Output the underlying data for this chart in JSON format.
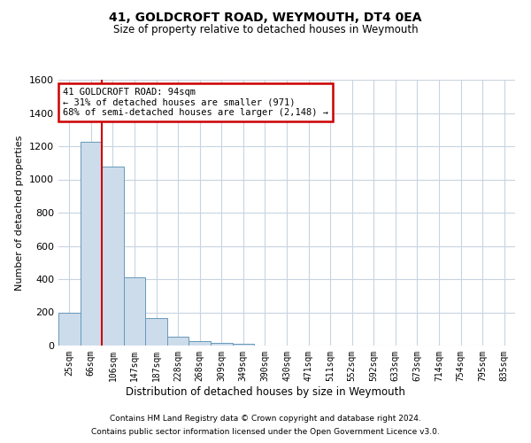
{
  "title1": "41, GOLDCROFT ROAD, WEYMOUTH, DT4 0EA",
  "title2": "Size of property relative to detached houses in Weymouth",
  "xlabel": "Distribution of detached houses by size in Weymouth",
  "ylabel": "Number of detached properties",
  "categories": [
    "25sqm",
    "66sqm",
    "106sqm",
    "147sqm",
    "187sqm",
    "228sqm",
    "268sqm",
    "309sqm",
    "349sqm",
    "390sqm",
    "430sqm",
    "471sqm",
    "511sqm",
    "552sqm",
    "592sqm",
    "633sqm",
    "673sqm",
    "714sqm",
    "754sqm",
    "795sqm",
    "835sqm"
  ],
  "values": [
    200,
    1225,
    1075,
    410,
    165,
    55,
    25,
    15,
    10,
    0,
    0,
    0,
    0,
    0,
    0,
    0,
    0,
    0,
    0,
    0,
    0
  ],
  "bar_color": "#cddceb",
  "bar_edge_color": "#6699bb",
  "vline_color": "#cc0000",
  "vline_x_index": 1.5,
  "annotation_text": "41 GOLDCROFT ROAD: 94sqm\n← 31% of detached houses are smaller (971)\n68% of semi-detached houses are larger (2,148) →",
  "annotation_box_color": "#cc0000",
  "ylim": [
    0,
    1600
  ],
  "yticks": [
    0,
    200,
    400,
    600,
    800,
    1000,
    1200,
    1400,
    1600
  ],
  "footer1": "Contains HM Land Registry data © Crown copyright and database right 2024.",
  "footer2": "Contains public sector information licensed under the Open Government Licence v3.0.",
  "bg_color": "#ffffff",
  "grid_color": "#c8d4e0"
}
